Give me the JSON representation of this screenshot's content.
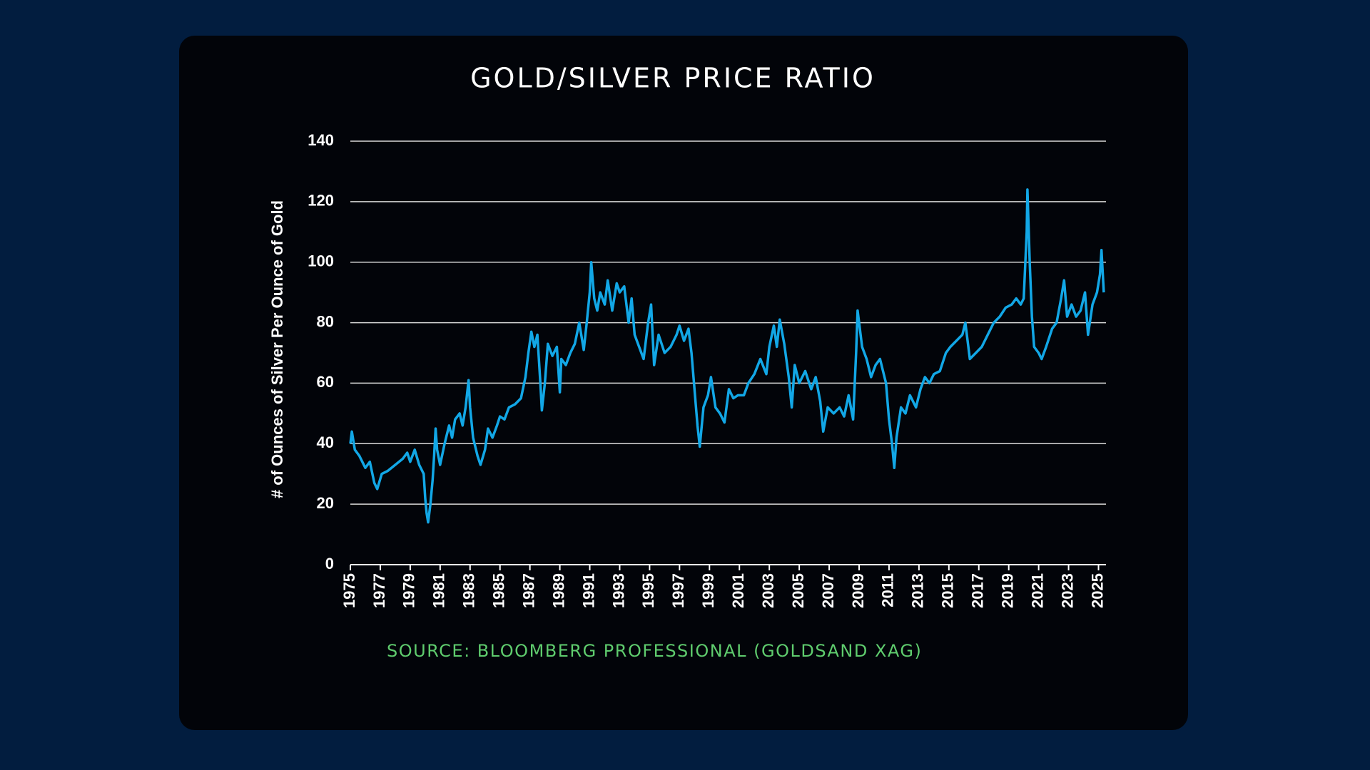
{
  "chart_data": {
    "type": "line",
    "title": "GOLD/SILVER PRICE RATIO",
    "y_label": "# of Ounces of Silver Per Ounce of Gold",
    "source": "SOURCE: BLOOMBERG PROFESSIONAL (GOLDSAND XAG)",
    "color": "#12a7e6",
    "grid": true,
    "xlim": [
      1975,
      2025.5
    ],
    "xticks": [
      1975,
      1977,
      1979,
      1981,
      1983,
      1985,
      1987,
      1989,
      1991,
      1993,
      1995,
      1997,
      1999,
      2001,
      2003,
      2005,
      2007,
      2009,
      2011,
      2013,
      2015,
      2017,
      2019,
      2021,
      2023,
      2025
    ],
    "ylim": [
      0,
      140
    ],
    "yticks": [
      0,
      20,
      40,
      60,
      80,
      100,
      120,
      140
    ],
    "x": [
      1975.0,
      1975.1,
      1975.3,
      1975.6,
      1976.0,
      1976.3,
      1976.6,
      1976.8,
      1977.1,
      1977.5,
      1978.0,
      1978.5,
      1978.8,
      1979.0,
      1979.3,
      1979.6,
      1979.9,
      1980.0,
      1980.1,
      1980.2,
      1980.35,
      1980.5,
      1980.6,
      1980.7,
      1980.8,
      1981.0,
      1981.3,
      1981.6,
      1981.8,
      1982.0,
      1982.3,
      1982.5,
      1982.7,
      1982.9,
      1983.0,
      1983.2,
      1983.5,
      1983.7,
      1984.0,
      1984.2,
      1984.5,
      1984.8,
      1985.0,
      1985.3,
      1985.6,
      1986.0,
      1986.4,
      1986.7,
      1986.9,
      1987.1,
      1987.3,
      1987.5,
      1987.7,
      1987.8,
      1988.0,
      1988.2,
      1988.5,
      1988.8,
      1989.0,
      1989.1,
      1989.4,
      1989.7,
      1990.0,
      1990.3,
      1990.6,
      1990.8,
      1991.0,
      1991.1,
      1991.3,
      1991.5,
      1991.7,
      1992.0,
      1992.2,
      1992.5,
      1992.8,
      1993.0,
      1993.3,
      1993.6,
      1993.8,
      1994.0,
      1994.3,
      1994.6,
      1994.9,
      1995.1,
      1995.3,
      1995.6,
      1996.0,
      1996.4,
      1996.8,
      1997.0,
      1997.3,
      1997.6,
      1997.8,
      1998.0,
      1998.2,
      1998.35,
      1998.6,
      1998.9,
      1999.1,
      1999.4,
      1999.7,
      2000.0,
      2000.3,
      2000.6,
      2000.9,
      2001.3,
      2001.6,
      2002.0,
      2002.4,
      2002.8,
      2003.0,
      2003.3,
      2003.5,
      2003.7,
      2004.0,
      2004.3,
      2004.5,
      2004.7,
      2005.0,
      2005.4,
      2005.8,
      2006.1,
      2006.4,
      2006.6,
      2006.9,
      2007.3,
      2007.7,
      2008.0,
      2008.3,
      2008.6,
      2008.8,
      2008.9,
      2009.2,
      2009.5,
      2009.8,
      2010.1,
      2010.4,
      2010.8,
      2011.0,
      2011.2,
      2011.35,
      2011.5,
      2011.8,
      2012.1,
      2012.4,
      2012.8,
      2013.1,
      2013.4,
      2013.7,
      2014.0,
      2014.4,
      2014.8,
      2015.1,
      2015.5,
      2015.9,
      2016.1,
      2016.4,
      2016.8,
      2017.2,
      2017.6,
      2018.0,
      2018.4,
      2018.8,
      2019.2,
      2019.5,
      2019.8,
      2020.0,
      2020.2,
      2020.25,
      2020.4,
      2020.55,
      2020.7,
      2021.0,
      2021.2,
      2021.5,
      2021.9,
      2022.2,
      2022.5,
      2022.7,
      2022.9,
      2023.2,
      2023.5,
      2023.8,
      2024.1,
      2024.3,
      2024.6,
      2024.9,
      2025.1,
      2025.2,
      2025.35
    ],
    "values": [
      40,
      44,
      38,
      36,
      32,
      34,
      27,
      25,
      30,
      31,
      33,
      35,
      37,
      34,
      38,
      33,
      30,
      22,
      17,
      14,
      20,
      28,
      36,
      45,
      38,
      33,
      40,
      46,
      42,
      48,
      50,
      46,
      52,
      61,
      52,
      42,
      36,
      33,
      38,
      45,
      42,
      46,
      49,
      48,
      52,
      53,
      55,
      62,
      70,
      77,
      72,
      76,
      60,
      51,
      60,
      73,
      69,
      72,
      57,
      68,
      66,
      70,
      73,
      80,
      71,
      80,
      90,
      100,
      88,
      84,
      90,
      86,
      94,
      84,
      93,
      90,
      92,
      80,
      88,
      76,
      72,
      68,
      80,
      86,
      66,
      76,
      70,
      72,
      76,
      79,
      74,
      78,
      70,
      58,
      46,
      39,
      52,
      56,
      62,
      52,
      50,
      47,
      58,
      55,
      56,
      56,
      60,
      63,
      68,
      63,
      72,
      79,
      72,
      81,
      73,
      62,
      52,
      66,
      60,
      64,
      58,
      62,
      54,
      44,
      52,
      50,
      52,
      49,
      56,
      48,
      70,
      84,
      72,
      68,
      62,
      66,
      68,
      60,
      48,
      40,
      32,
      42,
      52,
      50,
      56,
      52,
      58,
      62,
      60,
      63,
      64,
      70,
      72,
      74,
      76,
      80,
      68,
      70,
      72,
      76,
      80,
      82,
      85,
      86,
      88,
      86,
      88,
      110,
      124,
      100,
      82,
      72,
      70,
      68,
      72,
      78,
      80,
      88,
      94,
      82,
      86,
      82,
      84,
      90,
      76,
      86,
      90,
      96,
      104,
      90
    ]
  }
}
